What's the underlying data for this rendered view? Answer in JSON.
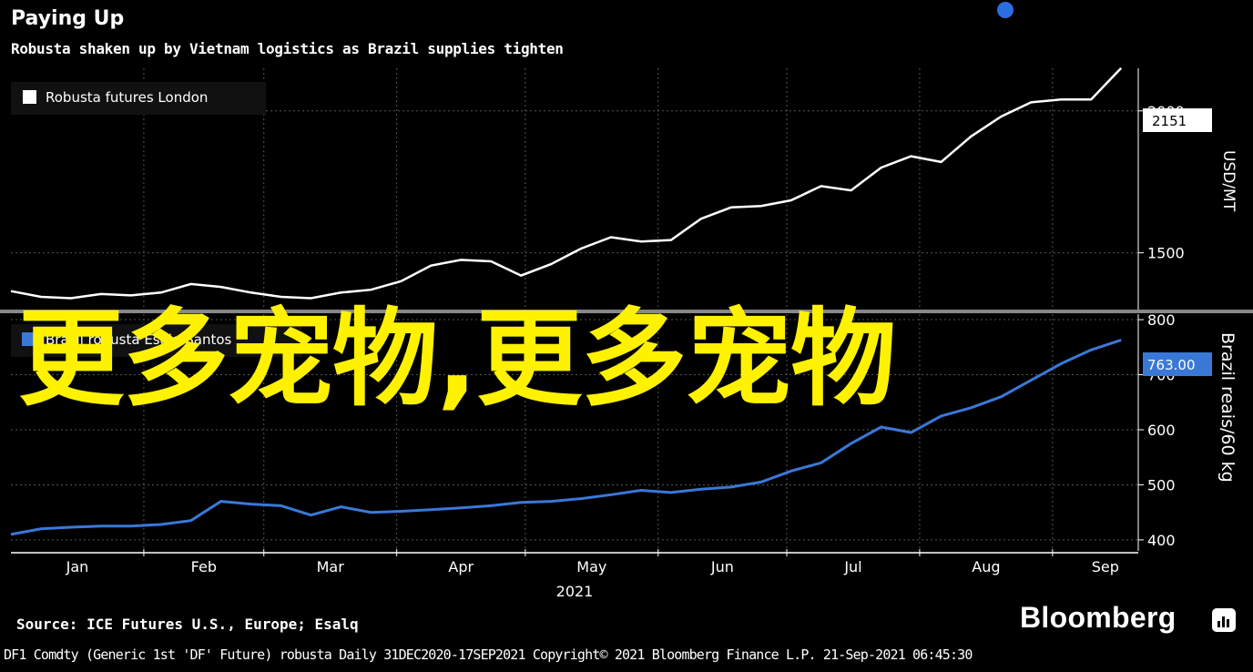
{
  "header": {
    "title": "Paying Up",
    "subtitle": "Robusta shaken up by Vietnam logistics as Brazil supplies tighten"
  },
  "overlay_text": "更多宠物,更多宠物",
  "source": "Source: ICE Futures U.S., Europe; Esalq",
  "footer": "DF1 Comdty (Generic 1st 'DF' Future) robusta  Daily 31DEC2020-17SEP2021  Copyright© 2021 Bloomberg Finance L.P.  21-Sep-2021 06:45:30",
  "brand": "Bloomberg",
  "colors": {
    "background": "#000000",
    "london": "#ffffff",
    "brazil": "#3a78d8",
    "overlay": "#fff200",
    "dot": "#2d6ce3"
  },
  "chart_data": [
    {
      "type": "line",
      "legend": "Robusta futures London",
      "legend_position": "top-left",
      "ylabel": "USD/MT",
      "ylim": [
        1300,
        2150
      ],
      "yticks": [
        1500,
        2000
      ],
      "last_value_label": "2151",
      "grid": true,
      "series": [
        {
          "name": "Robusta futures London",
          "x": [
            "2021-01-01",
            "2021-01-08",
            "2021-01-15",
            "2021-01-22",
            "2021-01-29",
            "2021-02-05",
            "2021-02-12",
            "2021-02-19",
            "2021-02-26",
            "2021-03-05",
            "2021-03-12",
            "2021-03-19",
            "2021-03-26",
            "2021-04-02",
            "2021-04-09",
            "2021-04-16",
            "2021-04-23",
            "2021-04-30",
            "2021-05-07",
            "2021-05-14",
            "2021-05-21",
            "2021-05-28",
            "2021-06-04",
            "2021-06-11",
            "2021-06-18",
            "2021-06-25",
            "2021-07-02",
            "2021-07-09",
            "2021-07-16",
            "2021-07-23",
            "2021-07-30",
            "2021-08-06",
            "2021-08-13",
            "2021-08-20",
            "2021-08-27",
            "2021-09-03",
            "2021-09-10",
            "2021-09-17"
          ],
          "values": [
            1365,
            1345,
            1340,
            1355,
            1350,
            1360,
            1390,
            1380,
            1360,
            1345,
            1340,
            1360,
            1370,
            1400,
            1455,
            1475,
            1470,
            1420,
            1460,
            1515,
            1555,
            1540,
            1545,
            1620,
            1660,
            1665,
            1685,
            1735,
            1720,
            1800,
            1840,
            1820,
            1910,
            1980,
            2030,
            2040,
            2040,
            2151
          ]
        }
      ]
    },
    {
      "type": "line",
      "legend": "Brazil robusta Esalq Santos",
      "legend_position": "top-left",
      "ylabel": "Brazil reais/60 kg",
      "ylim": [
        380,
        810
      ],
      "yticks": [
        400,
        500,
        600,
        700,
        800
      ],
      "last_value_label": "763.00",
      "xlabel": "2021",
      "xticks": [
        "Jan",
        "Feb",
        "Mar",
        "Apr",
        "May",
        "Jun",
        "Jul",
        "Aug",
        "Sep"
      ],
      "grid": true,
      "series": [
        {
          "name": "Brazil robusta Esalq Santos",
          "x": [
            "2021-01-01",
            "2021-01-08",
            "2021-01-15",
            "2021-01-22",
            "2021-01-29",
            "2021-02-05",
            "2021-02-12",
            "2021-02-19",
            "2021-02-26",
            "2021-03-05",
            "2021-03-12",
            "2021-03-19",
            "2021-03-26",
            "2021-04-02",
            "2021-04-09",
            "2021-04-16",
            "2021-04-23",
            "2021-04-30",
            "2021-05-07",
            "2021-05-14",
            "2021-05-21",
            "2021-05-28",
            "2021-06-04",
            "2021-06-11",
            "2021-06-18",
            "2021-06-25",
            "2021-07-02",
            "2021-07-09",
            "2021-07-16",
            "2021-07-23",
            "2021-07-30",
            "2021-08-06",
            "2021-08-13",
            "2021-08-20",
            "2021-08-27",
            "2021-09-03",
            "2021-09-10",
            "2021-09-17"
          ],
          "values": [
            410,
            420,
            423,
            425,
            425,
            428,
            435,
            470,
            465,
            462,
            445,
            460,
            450,
            452,
            455,
            458,
            462,
            468,
            470,
            475,
            482,
            490,
            486,
            492,
            496,
            505,
            525,
            540,
            575,
            605,
            595,
            625,
            640,
            660,
            690,
            720,
            745,
            763
          ]
        }
      ]
    }
  ]
}
